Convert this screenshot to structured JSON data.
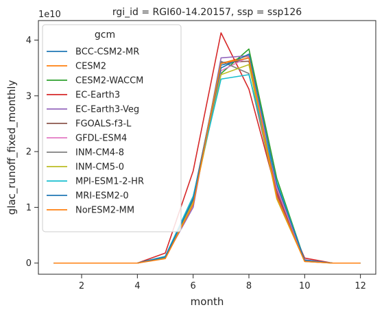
{
  "chart_data": {
    "type": "line",
    "title": "rgi_id = RGI60-14.20157, ssp = ssp126",
    "xlabel": "month",
    "ylabel": "glac_runoff_fixed_monthly",
    "y_offset_label": "1e10",
    "xlim": [
      0.45,
      12.55
    ],
    "ylim": [
      -0.2,
      4.35
    ],
    "y_unit_multiplier": 10000000000.0,
    "xticks": [
      2,
      4,
      6,
      8,
      10,
      12
    ],
    "yticks": [
      0,
      1,
      2,
      3,
      4
    ],
    "grid": false,
    "legend": {
      "title": "gcm",
      "placement": "top-left"
    },
    "x": [
      1,
      2,
      3,
      4,
      5,
      6,
      7,
      8,
      9,
      10,
      11,
      12
    ],
    "series": [
      {
        "name": "BCC-CSM2-MR",
        "color": "#1f77b4",
        "values": [
          0,
          0,
          0,
          0,
          0.12,
          1.18,
          3.55,
          3.68,
          1.4,
          0.05,
          0,
          0
        ]
      },
      {
        "name": "CESM2",
        "color": "#ff7f0e",
        "values": [
          0,
          0,
          0,
          0,
          0.1,
          1.05,
          3.58,
          3.72,
          1.25,
          0.04,
          0,
          0
        ]
      },
      {
        "name": "CESM2-WACCM",
        "color": "#2ca02c",
        "values": [
          0,
          0,
          0,
          0,
          0.1,
          1.1,
          3.4,
          3.84,
          1.52,
          0.05,
          0,
          0
        ]
      },
      {
        "name": "EC-Earth3",
        "color": "#d62728",
        "values": [
          0,
          0,
          0,
          0,
          0.18,
          1.65,
          4.13,
          3.12,
          1.25,
          0.09,
          0,
          0
        ]
      },
      {
        "name": "EC-Earth3-Veg",
        "color": "#9467bd",
        "values": [
          0,
          0,
          0,
          0,
          0.1,
          1.0,
          3.68,
          3.72,
          1.3,
          0.06,
          0,
          0
        ]
      },
      {
        "name": "FGOALS-f3-L",
        "color": "#8c564b",
        "values": [
          0,
          0,
          0,
          0,
          0.12,
          1.15,
          3.6,
          3.62,
          1.32,
          0.04,
          0,
          0
        ]
      },
      {
        "name": "GFDL-ESM4",
        "color": "#e377c2",
        "values": [
          0,
          0,
          0,
          0,
          0.11,
          1.08,
          3.45,
          3.7,
          1.35,
          0.04,
          0,
          0
        ]
      },
      {
        "name": "INM-CM4-8",
        "color": "#7f7f7f",
        "values": [
          0,
          0,
          0,
          0,
          0.1,
          1.12,
          3.62,
          3.4,
          1.2,
          0.03,
          0,
          0
        ]
      },
      {
        "name": "INM-CM5-0",
        "color": "#bcbd22",
        "values": [
          0,
          0,
          0,
          0,
          0.1,
          1.1,
          3.38,
          3.56,
          1.15,
          0.03,
          0,
          0
        ]
      },
      {
        "name": "MPI-ESM1-2-HR",
        "color": "#17becf",
        "values": [
          0,
          0,
          0,
          0,
          0.12,
          1.2,
          3.3,
          3.38,
          1.45,
          0.05,
          0,
          0
        ]
      },
      {
        "name": "MRI-ESM2-0",
        "color": "#1f77b4",
        "values": [
          0,
          0,
          0,
          0,
          0.11,
          1.14,
          3.5,
          3.75,
          1.42,
          0.05,
          0,
          0
        ]
      },
      {
        "name": "NorESM2-MM",
        "color": "#ff7f0e",
        "values": [
          0,
          0,
          0,
          0,
          0.08,
          1.05,
          3.58,
          3.68,
          1.18,
          0.03,
          0,
          0
        ]
      }
    ]
  }
}
